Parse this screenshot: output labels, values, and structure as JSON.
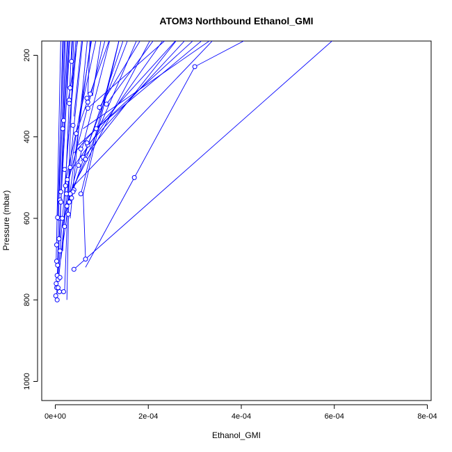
{
  "chart_data": {
    "type": "line",
    "title": "ATOM3 Northbound Ethanol_GMI",
    "xlabel": "Ethanol_GMI",
    "ylabel": "Pressure (mbar)",
    "xlim": [
      0,
      0.0008
    ],
    "ylim": [
      1040,
      150
    ],
    "y_reversed": true,
    "x_ticks": [
      0,
      0.0002,
      0.0004,
      0.0006,
      0.0008
    ],
    "x_tick_labels": [
      "0e+00",
      "2e-04",
      "4e-04",
      "6e-04",
      "8e-04"
    ],
    "y_ticks": [
      200,
      400,
      600,
      800,
      1000
    ],
    "y_tick_labels": [
      "200",
      "400",
      "600",
      "800",
      "1000"
    ],
    "color": "#0000ff",
    "marker": "open-circle",
    "grid": false,
    "series": [
      {
        "points": [
          [
            3e-06,
            790
          ],
          [
            2.8e-05,
            150
          ]
        ]
      },
      {
        "points": [
          [
            5e-06,
            760
          ],
          [
            4.5e-05,
            150
          ]
        ]
      },
      {
        "points": [
          [
            8e-06,
            740
          ],
          [
            6e-05,
            150
          ]
        ]
      },
      {
        "points": [
          [
            1.2e-05,
            700
          ],
          [
            7.8e-05,
            150
          ]
        ]
      },
      {
        "points": [
          [
            2e-05,
            780
          ],
          [
            4e-05,
            150
          ]
        ]
      },
      {
        "points": [
          [
            1.5e-05,
            620
          ],
          [
            0.00012,
            150
          ]
        ]
      },
      {
        "points": [
          [
            1.8e-05,
            600
          ],
          [
            0.00015,
            150
          ]
        ]
      },
      {
        "points": [
          [
            2.2e-05,
            570
          ],
          [
            0.00018,
            150
          ]
        ]
      },
      {
        "points": [
          [
            3e-05,
            540
          ],
          [
            0.00021,
            150
          ]
        ]
      },
      {
        "points": [
          [
            3.5e-05,
            480
          ],
          [
            0.00024,
            150
          ]
        ]
      },
      {
        "points": [
          [
            4e-05,
            440
          ],
          [
            0.00027,
            150
          ]
        ]
      },
      {
        "points": [
          [
            5e-05,
            420
          ],
          [
            0.00031,
            150
          ]
        ]
      },
      {
        "points": [
          [
            6e-05,
            380
          ],
          [
            0.00035,
            150
          ]
        ]
      },
      {
        "points": [
          [
            6.5e-05,
            720
          ],
          [
            0.00017,
            500
          ]
        ]
      },
      {
        "points": [
          [
            0.00017,
            500
          ],
          [
            0.0003,
            228
          ],
          [
            0.00043,
            150
          ]
        ]
      },
      {
        "points": [
          [
            4e-05,
            725
          ],
          [
            0.00061,
            150
          ]
        ]
      },
      {
        "points": [
          [
            7e-05,
            330
          ],
          [
            0.00025,
            150
          ]
        ]
      },
      {
        "points": [
          [
            9.5e-05,
            328
          ],
          [
            0.00019,
            150
          ]
        ]
      },
      {
        "points": [
          [
            0.00011,
            320
          ],
          [
            0.00022,
            150
          ]
        ]
      },
      {
        "points": [
          [
            8e-05,
            300
          ],
          [
            0.0001,
            150
          ]
        ]
      },
      {
        "points": [
          [
            7e-05,
            295
          ],
          [
            7.5e-05,
            150
          ]
        ]
      },
      {
        "points": [
          [
            2.5e-05,
            280
          ],
          [
            3e-05,
            150
          ]
        ]
      },
      {
        "points": [
          [
            3.5e-05,
            215
          ],
          [
            3.8e-05,
            150
          ]
        ]
      },
      {
        "points": [
          [
            5.5e-05,
            540
          ],
          [
            0.00014,
            150
          ]
        ]
      },
      {
        "points": [
          [
            6e-05,
            450
          ],
          [
            0.00016,
            150
          ]
        ]
      },
      {
        "points": [
          [
            4.5e-05,
            390
          ],
          [
            0.00012,
            150
          ]
        ]
      },
      {
        "points": [
          [
            2.8e-05,
            310
          ],
          [
            5e-05,
            150
          ]
        ]
      },
      {
        "points": [
          [
            1e-05,
            650
          ],
          [
            2.2e-05,
            150
          ]
        ]
      },
      {
        "points": [
          [
            5e-06,
            600
          ],
          [
            1.8e-05,
            150
          ]
        ]
      },
      {
        "points": [
          [
            1.8e-05,
            360
          ],
          [
            2.6e-05,
            150
          ]
        ]
      },
      {
        "points": [
          [
            1.2e-05,
            560
          ],
          [
            3.2e-05,
            150
          ]
        ]
      },
      {
        "points": [
          [
            2e-05,
            520
          ],
          [
            9e-05,
            150
          ]
        ]
      },
      {
        "points": [
          [
            3e-05,
            500
          ],
          [
            0.00011,
            150
          ]
        ]
      },
      {
        "points": [
          [
            1.6e-05,
            680
          ],
          [
            3.6e-05,
            150
          ]
        ]
      },
      {
        "points": [
          [
            7e-05,
            420
          ],
          [
            0.00029,
            150
          ]
        ]
      },
      {
        "points": [
          [
            8.8e-05,
            380
          ],
          [
            0.00033,
            150
          ]
        ]
      },
      {
        "points": [
          [
            6.5e-05,
            700
          ],
          [
            6e-05,
            540
          ],
          [
            0.00014,
            150
          ]
        ]
      },
      {
        "points": [
          [
            2e-06,
            700
          ],
          [
            1.2e-05,
            150
          ]
        ]
      },
      {
        "points": [
          [
            4e-06,
            760
          ],
          [
            1.6e-05,
            150
          ]
        ]
      },
      {
        "points": [
          [
            2.6e-05,
            430
          ],
          [
            4.8e-05,
            150
          ]
        ]
      },
      {
        "points": [
          [
            4e-05,
            350
          ],
          [
            5.8e-05,
            150
          ]
        ]
      },
      {
        "points": [
          [
            3.2e-05,
            600
          ],
          [
            7e-05,
            150
          ]
        ]
      },
      {
        "points": [
          [
            1e-05,
            535
          ],
          [
            2e-05,
            150
          ]
        ]
      },
      {
        "points": [
          [
            5.5e-05,
            460
          ],
          [
            0.00027,
            150
          ]
        ]
      },
      {
        "points": [
          [
            4e-05,
            520
          ],
          [
            0.00035,
            150
          ]
        ]
      },
      {
        "points": [
          [
            2.5e-05,
            800
          ],
          [
            3e-05,
            500
          ],
          [
            8e-05,
            150
          ]
        ]
      }
    ],
    "markers": [
      [
        0.0003,
        228
      ],
      [
        0.00017,
        500
      ],
      [
        6.5e-05,
        700
      ],
      [
        4e-05,
        725
      ],
      [
        9.5e-05,
        328
      ],
      [
        0.00011,
        320
      ],
      [
        7e-05,
        330
      ],
      [
        7.5e-05,
        295
      ],
      [
        6.8e-05,
        305
      ],
      [
        7e-05,
        315
      ],
      [
        3.2e-05,
        280
      ],
      [
        3.5e-05,
        215
      ],
      [
        3e-05,
        310
      ],
      [
        3e-05,
        318
      ],
      [
        3.8e-05,
        372
      ],
      [
        4.5e-05,
        392
      ],
      [
        5.5e-05,
        430
      ],
      [
        6e-05,
        450
      ],
      [
        6.5e-05,
        455
      ],
      [
        7e-05,
        420
      ],
      [
        6.8e-05,
        415
      ],
      [
        8.8e-05,
        380
      ],
      [
        5e-05,
        470
      ],
      [
        3.2e-05,
        475
      ],
      [
        5.5e-05,
        540
      ],
      [
        4e-05,
        530
      ],
      [
        3.8e-05,
        535
      ],
      [
        3.2e-05,
        540
      ],
      [
        3.5e-05,
        550
      ],
      [
        3e-05,
        560
      ],
      [
        2.5e-05,
        570
      ],
      [
        2e-05,
        480
      ],
      [
        1.8e-05,
        360
      ],
      [
        1.6e-05,
        380
      ],
      [
        1.2e-05,
        535
      ],
      [
        1e-05,
        555
      ],
      [
        8e-06,
        600
      ],
      [
        5e-06,
        598
      ],
      [
        3e-06,
        665
      ],
      [
        8e-06,
        650
      ],
      [
        1e-05,
        680
      ],
      [
        3e-06,
        705
      ],
      [
        5e-06,
        715
      ],
      [
        4e-06,
        740
      ],
      [
        6e-06,
        750
      ],
      [
        2e-06,
        760
      ],
      [
        3e-06,
        770
      ],
      [
        1e-06,
        790
      ],
      [
        4e-06,
        800
      ],
      [
        9e-06,
        780
      ],
      [
        1.8e-05,
        780
      ],
      [
        2e-05,
        620
      ],
      [
        1.5e-05,
        600
      ],
      [
        2.2e-05,
        520
      ],
      [
        2.6e-05,
        505
      ],
      [
        1e-05,
        745
      ],
      [
        6e-06,
        770
      ],
      [
        1.2e-05,
        560
      ],
      [
        2.4e-05,
        540
      ],
      [
        2.8e-05,
        590
      ]
    ]
  }
}
